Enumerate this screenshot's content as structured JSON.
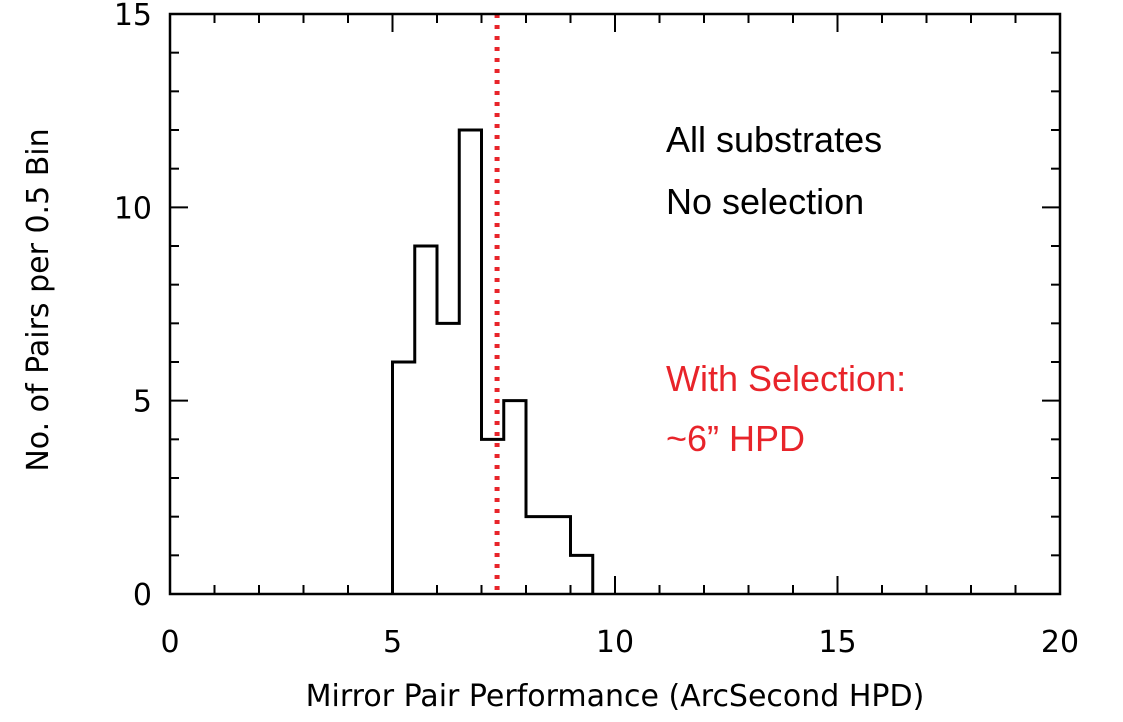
{
  "chart_data": {
    "type": "bar",
    "subtype": "step-histogram",
    "title": "",
    "xlabel": "Mirror Pair Performance (ArcSecond HPD)",
    "ylabel": "No. of Pairs per 0.5 Bin",
    "xlim": [
      0,
      20
    ],
    "ylim": [
      0,
      15
    ],
    "x_ticks": [
      0,
      5,
      10,
      15,
      20
    ],
    "y_ticks": [
      0,
      5,
      10,
      15
    ],
    "bin_width": 0.5,
    "bin_starts": [
      5.0,
      5.5,
      6.0,
      6.5,
      7.0,
      7.5,
      8.0,
      8.5,
      9.0
    ],
    "values": [
      6,
      9,
      7,
      12,
      4,
      5,
      2,
      2,
      1
    ],
    "reference_line": {
      "x": 7.35,
      "style": "dotted",
      "color": "#e8242a"
    },
    "annotations": [
      {
        "lines": [
          "All substrates",
          "No selection"
        ],
        "color": "#000000"
      },
      {
        "lines": [
          "With Selection:",
          "~6” HPD"
        ],
        "color": "#e8242a"
      }
    ],
    "grid": false,
    "legend": "none"
  }
}
